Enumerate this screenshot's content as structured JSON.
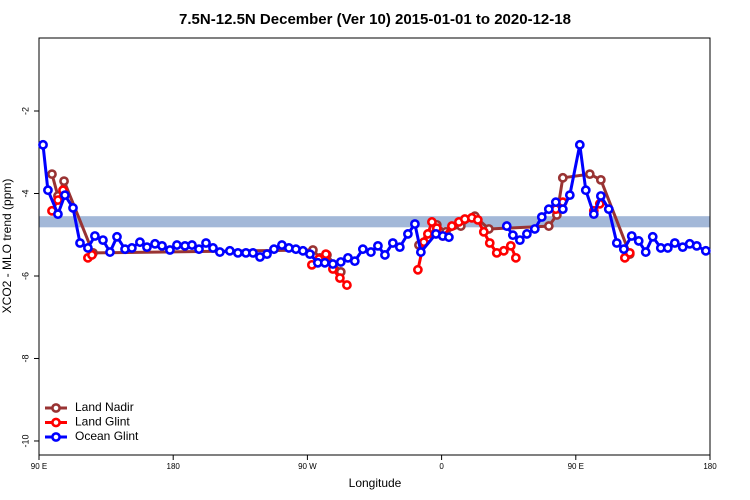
{
  "chart_data": {
    "type": "line",
    "title": "7.5N-12.5N December (Ver 10)   2015-01-01 to 2020-12-18",
    "x_label": "Longitude",
    "y_label": "XCO2 - MLO trend (ppm)",
    "xlim": [
      90,
      540
    ],
    "ylim": [
      -10.34,
      -0.23
    ],
    "xticks": [
      {
        "value": 90,
        "label": "90 E"
      },
      180,
      {
        "value": 270,
        "label": "90 W"
      },
      {
        "value": 360,
        "label": "0"
      },
      {
        "value": 450,
        "label": "90 E"
      },
      {
        "value": 540,
        "label": "180"
      }
    ],
    "yticks": [
      -10,
      -8,
      -6,
      -4,
      -2
    ],
    "reference_band": {
      "ylim": [
        -4.82,
        -4.55
      ],
      "color": "#a3b8d8"
    },
    "legend": "bottom-left",
    "series": [
      {
        "name": "Land Nadir",
        "color": "#993333",
        "x": [
          98.7,
          102.7,
          106.8,
          126.2,
          273.7,
          278.4,
          283.1,
          292.4,
          295.8,
          344.8,
          350.8,
          356.8,
          362.9,
          372.9,
          382.3,
          391.7,
          431.9,
          437.3,
          441.3,
          459.4,
          466.8,
          486.2
        ],
        "values": [
          -3.53,
          -4.06,
          -3.7,
          -5.44,
          -5.37,
          -5.56,
          -5.49,
          -5.9,
          null,
          -5.25,
          -5.08,
          -4.76,
          -4.93,
          -4.79,
          -4.55,
          -4.86,
          -4.79,
          -4.52,
          -3.62,
          -3.53,
          -3.67,
          -5.47
        ]
      },
      {
        "name": "Land Glint",
        "color": "#ff0000",
        "x": [
          98.7,
          102.7,
          106.1,
          114,
          122.8,
          125.5,
          270,
          273.0,
          277.7,
          282.4,
          287.1,
          291.8,
          296.5,
          340,
          344.1,
          348.1,
          350.8,
          353.5,
          356.8,
          360.8,
          366.9,
          371.6,
          375.6,
          380.3,
          384.3,
          388.3,
          392.3,
          397.0,
          401.7,
          406.4,
          409.8,
          420,
          436.6,
          441.3,
          450,
          462.1,
          466.1,
          475,
          482.9,
          486.2
        ],
        "values": [
          -4.42,
          -4.16,
          -3.92,
          null,
          -5.56,
          -5.49,
          null,
          -5.73,
          -5.59,
          -5.47,
          -5.83,
          -6.05,
          -6.22,
          null,
          -5.85,
          -5.18,
          -4.98,
          -4.69,
          -4.84,
          -5.03,
          -4.79,
          -4.69,
          -4.62,
          -4.59,
          -4.64,
          -4.93,
          -5.2,
          -5.44,
          -5.39,
          -5.27,
          -5.56,
          null,
          -4.38,
          -4.21,
          null,
          -4.42,
          -4.25,
          null,
          -5.56,
          -5.44
        ]
      },
      {
        "name": "Ocean Glint",
        "color": "#0000ff",
        "x": [
          92.7,
          96.0,
          102.7,
          107.4,
          112.8,
          117.5,
          122.8,
          127.5,
          132.9,
          137.6,
          142.3,
          147.7,
          152.3,
          157.7,
          162.4,
          167.8,
          172.5,
          177.8,
          182.5,
          187.9,
          192.6,
          197.3,
          202.0,
          206.7,
          211.3,
          218.0,
          223.4,
          228.8,
          233.5,
          238.2,
          242.9,
          247.6,
          252.9,
          257.6,
          262.3,
          267.0,
          271.7,
          277.0,
          281.7,
          287.1,
          292.4,
          297.2,
          301.8,
          307.2,
          312.6,
          317.3,
          322.0,
          327.3,
          332.0,
          337.4,
          342.1,
          346.1,
          356.2,
          360.8,
          364.9,
          385,
          403.7,
          407.8,
          412.5,
          417.2,
          422.5,
          427.2,
          431.9,
          436.6,
          441.3,
          446.0,
          452.7,
          456.7,
          462.1,
          466.8,
          472.1,
          477.5,
          482.2,
          487.5,
          492.2,
          496.9,
          501.6,
          507.0,
          511.7,
          516.4,
          521.7,
          526.4,
          531.1,
          537.2
        ],
        "values": [
          -2.82,
          -3.92,
          -4.5,
          -4.04,
          -4.35,
          -5.2,
          -5.32,
          -5.03,
          -5.13,
          -5.42,
          -5.05,
          -5.35,
          -5.32,
          -5.18,
          -5.3,
          -5.22,
          -5.27,
          -5.37,
          -5.25,
          -5.27,
          -5.25,
          -5.35,
          -5.2,
          -5.32,
          -5.42,
          -5.39,
          -5.44,
          -5.44,
          -5.44,
          -5.54,
          -5.47,
          -5.35,
          -5.25,
          -5.32,
          -5.35,
          -5.39,
          -5.47,
          -5.68,
          -5.68,
          -5.71,
          -5.66,
          -5.56,
          -5.64,
          -5.35,
          -5.42,
          -5.27,
          -5.49,
          -5.2,
          -5.3,
          -4.98,
          -4.74,
          -5.42,
          -4.98,
          -5.03,
          -5.06,
          null,
          -4.79,
          -5.01,
          -5.13,
          -4.98,
          -4.86,
          -4.57,
          -4.38,
          -4.21,
          -4.38,
          -4.04,
          -2.82,
          -3.92,
          -4.5,
          -4.06,
          -4.38,
          -5.2,
          -5.35,
          -5.03,
          -5.15,
          -5.42,
          -5.05,
          -5.32,
          -5.32,
          -5.2,
          -5.3,
          -5.22,
          -5.27,
          -5.39
        ]
      }
    ]
  }
}
